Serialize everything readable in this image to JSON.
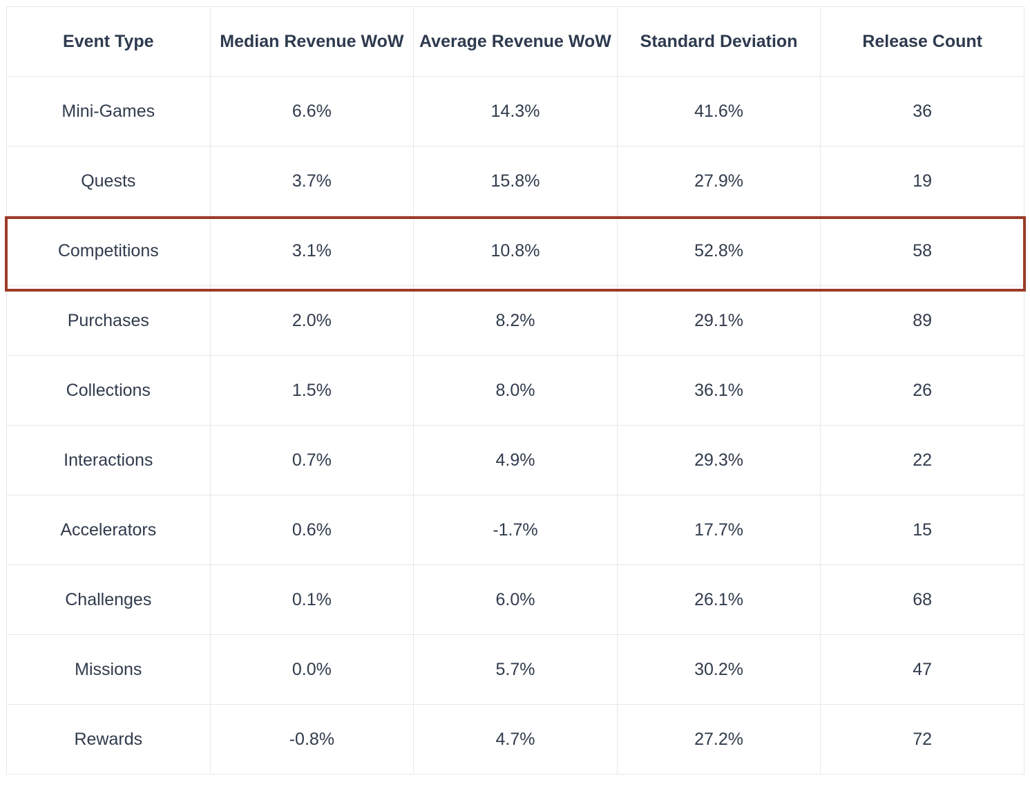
{
  "chart_data": {
    "type": "table",
    "columns": [
      "Event Type",
      "Median Revenue WoW",
      "Average Revenue WoW",
      "Standard Deviation",
      "Release Count"
    ],
    "rows": [
      [
        "Mini-Games",
        "6.6%",
        "14.3%",
        "41.6%",
        "36"
      ],
      [
        "Quests",
        "3.7%",
        "15.8%",
        "27.9%",
        "19"
      ],
      [
        "Competitions",
        "3.1%",
        "10.8%",
        "52.8%",
        "58"
      ],
      [
        "Purchases",
        "2.0%",
        "8.2%",
        "29.1%",
        "89"
      ],
      [
        "Collections",
        "1.5%",
        "8.0%",
        "36.1%",
        "26"
      ],
      [
        "Interactions",
        "0.7%",
        "4.9%",
        "29.3%",
        "22"
      ],
      [
        "Accelerators",
        "0.6%",
        "-1.7%",
        "17.7%",
        "15"
      ],
      [
        "Challenges",
        "0.1%",
        "6.0%",
        "26.1%",
        "68"
      ],
      [
        "Missions",
        "0.0%",
        "5.7%",
        "30.2%",
        "47"
      ],
      [
        "Rewards",
        "-0.8%",
        "4.7%",
        "27.2%",
        "72"
      ]
    ],
    "highlighted_row": "Competitions",
    "highlight_color": "#9c3b27",
    "grid": true
  }
}
